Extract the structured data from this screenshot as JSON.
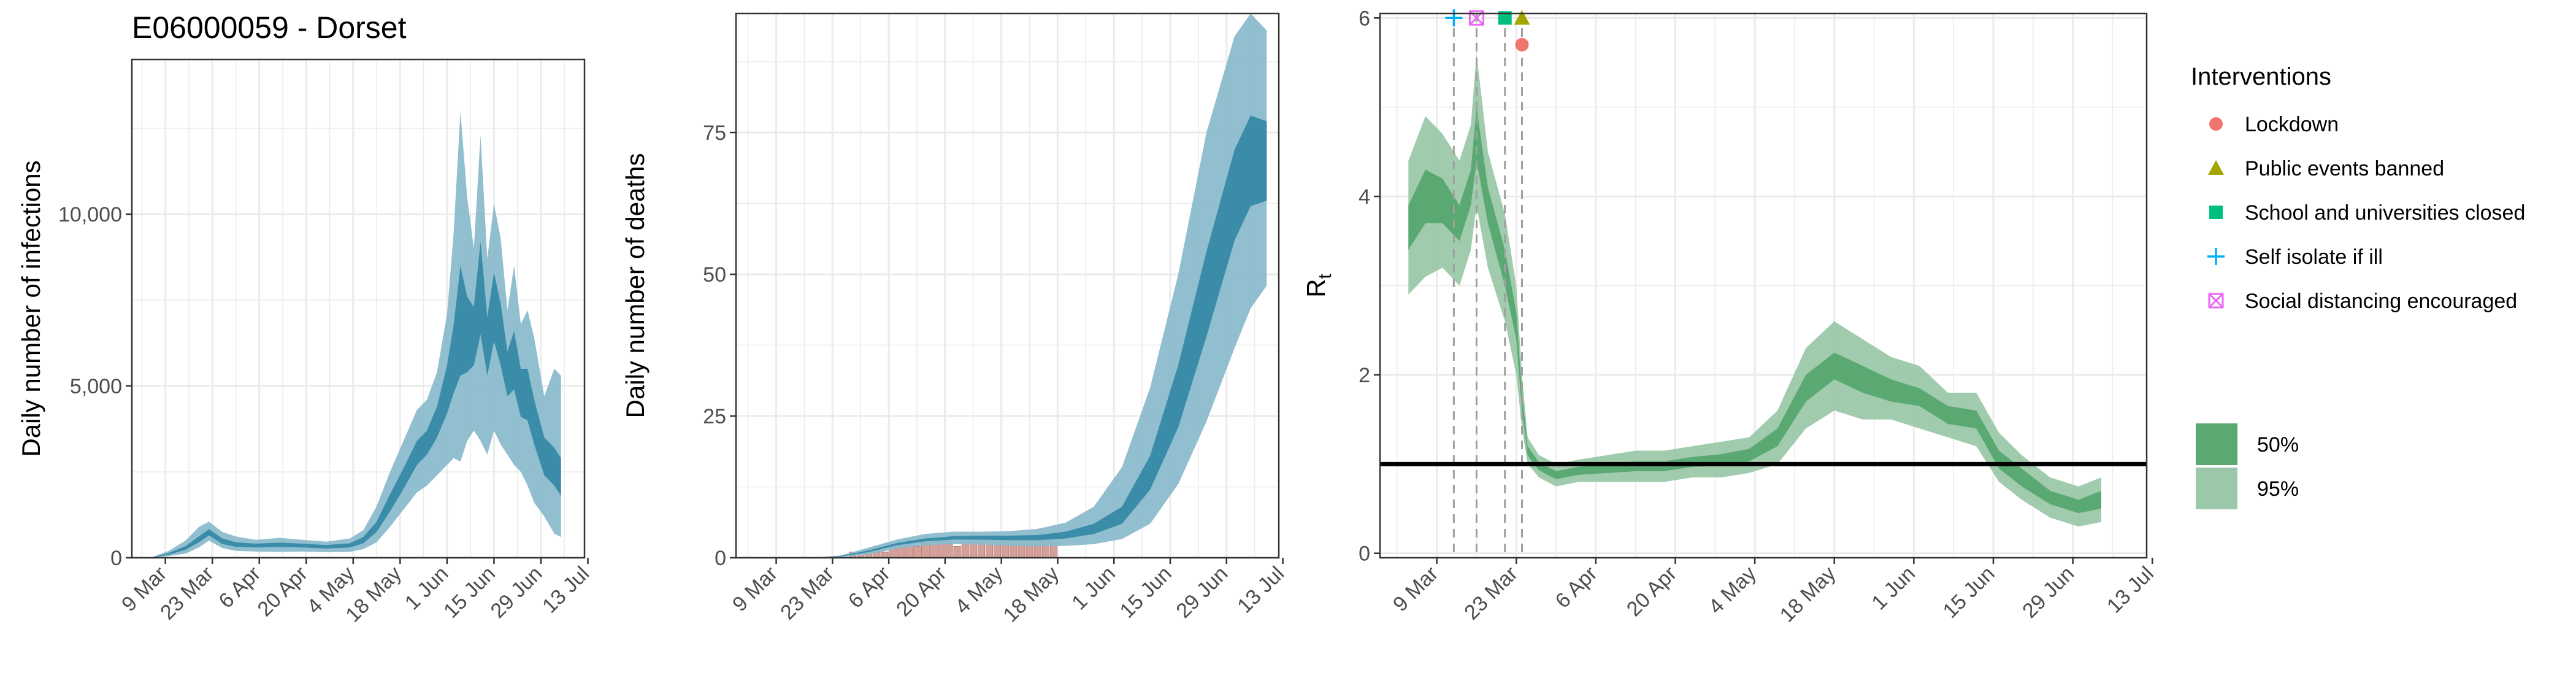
{
  "title": "E06000059 - Dorset",
  "colors": {
    "blue_light": "#8bbccc",
    "blue_dark": "#3a8ca8",
    "green_light": "#9bc8a9",
    "green_dark": "#5aa872",
    "deaths_bar": "#d4a09a",
    "lockdown": "#f0766d",
    "public_events": "#a3a500",
    "school": "#00bf7d",
    "self_isolate": "#00b0f6",
    "social_distancing": "#e76bf3",
    "grid": "#ebebeb"
  },
  "chart_data": [
    {
      "id": "infections",
      "type": "area",
      "title": "E06000059 - Dorset",
      "xlabel": "",
      "ylabel": "Daily number of infections",
      "x_ticks": [
        "9 Mar",
        "23 Mar",
        "6 Apr",
        "20 Apr",
        "4 May",
        "18 May",
        "1 Jun",
        "15 Jun",
        "29 Jun",
        "13 Jul"
      ],
      "y_ticks": [
        0,
        5000,
        10000
      ],
      "y_tick_labels": [
        "0",
        "5,000",
        "10,000"
      ],
      "xlim": [
        "2020-02-28",
        "2020-07-12"
      ],
      "ylim": [
        0,
        14500
      ],
      "grid": true,
      "series": [
        {
          "band": "95%",
          "x": [
            "2020-03-05",
            "2020-03-10",
            "2020-03-15",
            "2020-03-19",
            "2020-03-22",
            "2020-03-26",
            "2020-03-30",
            "2020-04-05",
            "2020-04-12",
            "2020-04-19",
            "2020-04-26",
            "2020-05-03",
            "2020-05-07",
            "2020-05-11",
            "2020-05-15",
            "2020-05-19",
            "2020-05-23",
            "2020-05-26",
            "2020-05-29",
            "2020-06-01",
            "2020-06-03",
            "2020-06-05",
            "2020-06-07",
            "2020-06-09",
            "2020-06-11",
            "2020-06-13",
            "2020-06-15",
            "2020-06-17",
            "2020-06-19",
            "2020-06-21",
            "2020-06-23",
            "2020-06-25",
            "2020-06-27",
            "2020-06-30",
            "2020-07-03",
            "2020-07-05"
          ],
          "lower": [
            0,
            50,
            120,
            300,
            500,
            280,
            200,
            180,
            170,
            180,
            160,
            170,
            250,
            450,
            900,
            1400,
            1900,
            2100,
            2400,
            2700,
            2900,
            2800,
            3400,
            3700,
            3400,
            3000,
            3700,
            3300,
            3000,
            2700,
            2500,
            2100,
            1600,
            1200,
            700,
            600
          ],
          "upper": [
            20,
            200,
            500,
            900,
            1050,
            750,
            620,
            520,
            580,
            520,
            470,
            560,
            800,
            1500,
            2500,
            3400,
            4300,
            4600,
            5400,
            7100,
            9500,
            13000,
            10500,
            9000,
            12300,
            8700,
            10300,
            9300,
            7200,
            8500,
            6800,
            7200,
            6400,
            4700,
            5500,
            5300
          ]
        },
        {
          "band": "50%",
          "x": [
            "2020-03-05",
            "2020-03-10",
            "2020-03-15",
            "2020-03-19",
            "2020-03-22",
            "2020-03-26",
            "2020-03-30",
            "2020-04-05",
            "2020-04-12",
            "2020-04-19",
            "2020-04-26",
            "2020-05-03",
            "2020-05-07",
            "2020-05-11",
            "2020-05-15",
            "2020-05-19",
            "2020-05-23",
            "2020-05-26",
            "2020-05-29",
            "2020-06-01",
            "2020-06-03",
            "2020-06-05",
            "2020-06-07",
            "2020-06-09",
            "2020-06-11",
            "2020-06-13",
            "2020-06-15",
            "2020-06-17",
            "2020-06-19",
            "2020-06-21",
            "2020-06-23",
            "2020-06-25",
            "2020-06-27",
            "2020-06-30",
            "2020-07-03",
            "2020-07-05"
          ],
          "lower": [
            2,
            90,
            230,
            450,
            650,
            400,
            320,
            300,
            310,
            300,
            270,
            300,
            420,
            750,
            1350,
            2000,
            2700,
            3000,
            3500,
            4200,
            4800,
            5300,
            5400,
            5600,
            6500,
            5300,
            6300,
            5600,
            4700,
            4900,
            4100,
            4000,
            3300,
            2400,
            2100,
            1800
          ],
          "upper": [
            8,
            140,
            340,
            620,
            830,
            560,
            450,
            410,
            440,
            410,
            370,
            420,
            600,
            1050,
            1850,
            2600,
            3400,
            3700,
            4400,
            5600,
            6800,
            8500,
            7600,
            7300,
            9200,
            7000,
            8300,
            7400,
            6000,
            6600,
            5500,
            5500,
            4600,
            3500,
            3200,
            2900
          ]
        }
      ]
    },
    {
      "id": "deaths",
      "type": "area",
      "xlabel": "",
      "ylabel": "Daily number of deaths",
      "x_ticks": [
        "9 Mar",
        "23 Mar",
        "6 Apr",
        "20 Apr",
        "4 May",
        "18 May",
        "1 Jun",
        "15 Jun",
        "29 Jun",
        "13 Jul"
      ],
      "y_ticks": [
        0,
        25,
        50,
        75
      ],
      "y_tick_labels": [
        "0",
        "25",
        "50",
        "75"
      ],
      "xlim": [
        "2020-02-28",
        "2020-07-12"
      ],
      "ylim": [
        0,
        96
      ],
      "grid": true,
      "observed_x": [
        "2020-03-28",
        "2020-03-30",
        "2020-04-01",
        "2020-04-03",
        "2020-04-05",
        "2020-04-07",
        "2020-04-09",
        "2020-04-11",
        "2020-04-13",
        "2020-04-15",
        "2020-04-17",
        "2020-04-19",
        "2020-04-21",
        "2020-04-23",
        "2020-04-25",
        "2020-04-27",
        "2020-04-29",
        "2020-05-01",
        "2020-05-03",
        "2020-05-05",
        "2020-05-07",
        "2020-05-09",
        "2020-05-11",
        "2020-05-13",
        "2020-05-15",
        "2020-05-17"
      ],
      "observed_deaths": [
        1,
        1,
        1,
        2,
        1,
        2,
        2,
        3,
        2,
        3,
        3,
        3,
        3,
        2,
        3,
        4,
        4,
        4,
        4,
        4,
        3,
        3,
        3,
        3,
        3,
        3
      ],
      "series": [
        {
          "band": "95%",
          "x": [
            "2020-03-18",
            "2020-03-25",
            "2020-04-01",
            "2020-04-08",
            "2020-04-15",
            "2020-04-22",
            "2020-04-29",
            "2020-05-06",
            "2020-05-13",
            "2020-05-20",
            "2020-05-27",
            "2020-06-03",
            "2020-06-10",
            "2020-06-17",
            "2020-06-24",
            "2020-07-01",
            "2020-07-05",
            "2020-07-09"
          ],
          "lower": [
            0,
            0.1,
            0.6,
            1.6,
            2.2,
            2.4,
            2.3,
            2.1,
            2.0,
            2.1,
            2.4,
            3.3,
            6,
            13,
            24,
            37,
            44,
            48
          ],
          "upper": [
            0,
            0.4,
            1.8,
            3.2,
            4.2,
            4.6,
            4.6,
            4.7,
            5.1,
            6.2,
            9,
            16,
            30,
            50,
            75,
            92,
            96,
            93
          ]
        },
        {
          "band": "50%",
          "x": [
            "2020-03-18",
            "2020-03-25",
            "2020-04-01",
            "2020-04-08",
            "2020-04-15",
            "2020-04-22",
            "2020-04-29",
            "2020-05-06",
            "2020-05-13",
            "2020-05-20",
            "2020-05-27",
            "2020-06-03",
            "2020-06-10",
            "2020-06-17",
            "2020-06-24",
            "2020-07-01",
            "2020-07-05",
            "2020-07-09"
          ],
          "lower": [
            0,
            0.2,
            1.0,
            2.2,
            2.9,
            3.2,
            3.2,
            3.1,
            3.1,
            3.4,
            4.2,
            6,
            12,
            23,
            39,
            56,
            62,
            63
          ],
          "upper": [
            0,
            0.3,
            1.3,
            2.6,
            3.4,
            3.8,
            3.9,
            3.9,
            4.0,
            4.6,
            6,
            9,
            18,
            34,
            54,
            72,
            78,
            77
          ]
        }
      ]
    },
    {
      "id": "rt",
      "type": "area",
      "xlabel": "",
      "ylabel": "R",
      "ylabel_sub": "t",
      "x_ticks": [
        "9 Mar",
        "23 Mar",
        "6 Apr",
        "20 Apr",
        "4 May",
        "18 May",
        "1 Jun",
        "15 Jun",
        "29 Jun",
        "13 Jul"
      ],
      "y_ticks": [
        0,
        2,
        4,
        6
      ],
      "y_tick_labels": [
        "0",
        "2",
        "4",
        "6"
      ],
      "xlim": [
        "2020-02-28",
        "2020-07-12"
      ],
      "ylim": [
        -0.05,
        6.05
      ],
      "grid": true,
      "reference_line_y": 1,
      "interventions": [
        {
          "name": "Self isolate if ill",
          "date": "2020-03-12",
          "shape": "plus",
          "y": 6.0
        },
        {
          "name": "Social distancing encouraged",
          "date": "2020-03-16",
          "shape": "boxcross",
          "y": 6.0
        },
        {
          "name": "School and universities closed",
          "date": "2020-03-21",
          "shape": "square",
          "y": 6.0
        },
        {
          "name": "Public events banned",
          "date": "2020-03-24",
          "shape": "triangle",
          "y": 6.0
        },
        {
          "name": "Lockdown",
          "date": "2020-03-24",
          "shape": "circle",
          "y": 5.7
        }
      ],
      "series": [
        {
          "band": "95%",
          "x": [
            "2020-03-04",
            "2020-03-07",
            "2020-03-10",
            "2020-03-13",
            "2020-03-15",
            "2020-03-16",
            "2020-03-18",
            "2020-03-21",
            "2020-03-23",
            "2020-03-24",
            "2020-03-25",
            "2020-03-27",
            "2020-03-30",
            "2020-04-03",
            "2020-04-08",
            "2020-04-13",
            "2020-04-18",
            "2020-04-23",
            "2020-04-28",
            "2020-05-03",
            "2020-05-08",
            "2020-05-13",
            "2020-05-18",
            "2020-05-23",
            "2020-05-28",
            "2020-06-02",
            "2020-06-07",
            "2020-06-12",
            "2020-06-16",
            "2020-06-20",
            "2020-06-25",
            "2020-06-30",
            "2020-07-04"
          ],
          "lower": [
            2.9,
            3.1,
            3.2,
            3.0,
            3.4,
            3.9,
            3.2,
            2.6,
            2.0,
            1.4,
            1.0,
            0.85,
            0.75,
            0.8,
            0.8,
            0.8,
            0.8,
            0.85,
            0.85,
            0.9,
            1.0,
            1.4,
            1.6,
            1.5,
            1.5,
            1.4,
            1.3,
            1.2,
            0.8,
            0.6,
            0.4,
            0.3,
            0.35
          ],
          "upper": [
            4.4,
            4.9,
            4.7,
            4.4,
            4.8,
            5.6,
            4.5,
            3.8,
            3.0,
            2.0,
            1.3,
            1.1,
            1.0,
            1.05,
            1.1,
            1.15,
            1.15,
            1.2,
            1.25,
            1.3,
            1.6,
            2.3,
            2.6,
            2.4,
            2.2,
            2.1,
            1.8,
            1.8,
            1.35,
            1.1,
            0.85,
            0.75,
            0.85
          ]
        },
        {
          "band": "50%",
          "x": [
            "2020-03-04",
            "2020-03-07",
            "2020-03-10",
            "2020-03-13",
            "2020-03-15",
            "2020-03-16",
            "2020-03-18",
            "2020-03-21",
            "2020-03-23",
            "2020-03-24",
            "2020-03-25",
            "2020-03-27",
            "2020-03-30",
            "2020-04-03",
            "2020-04-08",
            "2020-04-13",
            "2020-04-18",
            "2020-04-23",
            "2020-04-28",
            "2020-05-03",
            "2020-05-08",
            "2020-05-13",
            "2020-05-18",
            "2020-05-23",
            "2020-05-28",
            "2020-06-02",
            "2020-06-07",
            "2020-06-12",
            "2020-06-16",
            "2020-06-20",
            "2020-06-25",
            "2020-06-30",
            "2020-07-04"
          ],
          "lower": [
            3.4,
            3.7,
            3.7,
            3.5,
            3.9,
            4.4,
            3.7,
            3.0,
            2.4,
            1.6,
            1.1,
            0.93,
            0.83,
            0.88,
            0.9,
            0.92,
            0.92,
            0.97,
            0.98,
            1.03,
            1.2,
            1.7,
            1.95,
            1.8,
            1.7,
            1.65,
            1.45,
            1.4,
            0.95,
            0.75,
            0.55,
            0.45,
            0.5
          ],
          "upper": [
            3.9,
            4.3,
            4.2,
            3.9,
            4.3,
            5.0,
            4.1,
            3.4,
            2.7,
            1.8,
            1.2,
            1.02,
            0.92,
            0.97,
            1.0,
            1.03,
            1.03,
            1.08,
            1.11,
            1.17,
            1.4,
            2.0,
            2.25,
            2.1,
            1.95,
            1.85,
            1.65,
            1.6,
            1.15,
            0.95,
            0.7,
            0.6,
            0.7
          ]
        }
      ]
    }
  ],
  "legend": {
    "interventions_title": "Interventions",
    "items": [
      {
        "label": "Lockdown",
        "shape": "circle",
        "color_key": "lockdown"
      },
      {
        "label": "Public events banned",
        "shape": "triangle",
        "color_key": "public_events"
      },
      {
        "label": "School and universities closed",
        "shape": "square",
        "color_key": "school"
      },
      {
        "label": "Self isolate if ill",
        "shape": "plus",
        "color_key": "self_isolate"
      },
      {
        "label": "Social distancing encouraged",
        "shape": "boxcross",
        "color_key": "social_distancing"
      }
    ],
    "bands": [
      {
        "label": "50%",
        "color_key": "green_dark"
      },
      {
        "label": "95%",
        "color_key": "green_light"
      }
    ]
  }
}
